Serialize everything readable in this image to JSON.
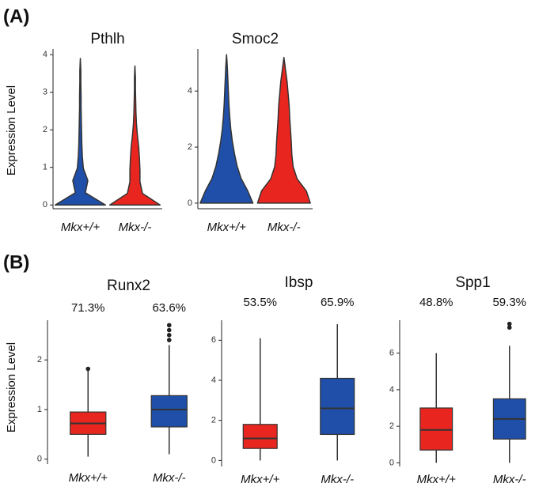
{
  "panels": [
    "(A)",
    "(B)"
  ],
  "chart_data": [
    {
      "type": "violin",
      "title": "Pthlh",
      "ylabel": "Expression Level",
      "categories": [
        "Mkx+/+",
        "Mkx-/-"
      ],
      "colors": [
        "#1f4fa8",
        "#e8261f"
      ],
      "ylim": [
        -0.1,
        4.15
      ],
      "yticks": [
        0,
        1,
        2,
        3,
        4
      ],
      "max": [
        3.9,
        3.7
      ],
      "density": [
        [
          1,
          0.2,
          0.3,
          0.12,
          0.08,
          0.06,
          0.05,
          0.04,
          0.03,
          0.03,
          0.02,
          0.02,
          0
        ],
        [
          1,
          0.3,
          0.2,
          0.2,
          0.18,
          0.15,
          0.1,
          0.06,
          0.04,
          0.03,
          0.02,
          0.02,
          0
        ]
      ]
    },
    {
      "type": "violin",
      "title": "Smoc2",
      "categories": [
        "Mkx+/+",
        "Mkx-/-"
      ],
      "colors": [
        "#1f4fa8",
        "#e8261f"
      ],
      "ylim": [
        -0.2,
        5.5
      ],
      "yticks": [
        0,
        2,
        4
      ],
      "max": [
        5.3,
        5.2
      ],
      "density": [
        [
          1,
          0.8,
          0.55,
          0.4,
          0.3,
          0.22,
          0.16,
          0.12,
          0.09,
          0.07,
          0.05,
          0.03,
          0
        ],
        [
          1,
          0.85,
          0.5,
          0.35,
          0.3,
          0.28,
          0.25,
          0.22,
          0.2,
          0.16,
          0.12,
          0.06,
          0
        ]
      ]
    },
    {
      "type": "box",
      "title": "Runx2",
      "ylabel": "Expression Level",
      "categories": [
        "Mkx+/+",
        "Mkx-/-"
      ],
      "colors": [
        "#e8261f",
        "#1f4fa8"
      ],
      "ylim": [
        -0.1,
        2.8
      ],
      "yticks": [
        0,
        1,
        2
      ],
      "values": [
        71.3,
        63.6
      ],
      "value_labels": [
        "71.3%",
        "63.6%"
      ],
      "boxes": [
        {
          "min": 0.05,
          "q1": 0.5,
          "median": 0.72,
          "q3": 0.95,
          "max": 1.8,
          "outliers": [
            1.82
          ]
        },
        {
          "min": 0.1,
          "q1": 0.65,
          "median": 1.0,
          "q3": 1.28,
          "max": 2.3,
          "outliers": [
            2.4,
            2.5,
            2.6,
            2.7
          ]
        }
      ]
    },
    {
      "type": "box",
      "title": "Ibsp",
      "categories": [
        "Mkx+/+",
        "Mkx-/-"
      ],
      "colors": [
        "#e8261f",
        "#1f4fa8"
      ],
      "ylim": [
        -0.3,
        7.0
      ],
      "yticks": [
        0,
        2,
        4,
        6
      ],
      "values": [
        53.5,
        65.9
      ],
      "value_labels": [
        "53.5%",
        "65.9%"
      ],
      "boxes": [
        {
          "min": 0,
          "q1": 0.6,
          "median": 1.1,
          "q3": 1.8,
          "max": 6.1,
          "outliers": []
        },
        {
          "min": 0,
          "q1": 1.3,
          "median": 2.6,
          "q3": 4.1,
          "max": 6.8,
          "outliers": []
        }
      ]
    },
    {
      "type": "box",
      "title": "Spp1",
      "categories": [
        "Mkx+/+",
        "Mkx-/-"
      ],
      "colors": [
        "#e8261f",
        "#1f4fa8"
      ],
      "ylim": [
        -0.2,
        7.8
      ],
      "yticks": [
        0,
        2,
        4,
        6
      ],
      "values": [
        48.8,
        59.3
      ],
      "value_labels": [
        "48.8%",
        "59.3%"
      ],
      "boxes": [
        {
          "min": 0,
          "q1": 0.7,
          "median": 1.8,
          "q3": 3.0,
          "max": 6.0,
          "outliers": []
        },
        {
          "min": 0,
          "q1": 1.3,
          "median": 2.4,
          "q3": 3.5,
          "max": 6.4,
          "outliers": [
            7.4,
            7.6
          ]
        }
      ]
    }
  ]
}
